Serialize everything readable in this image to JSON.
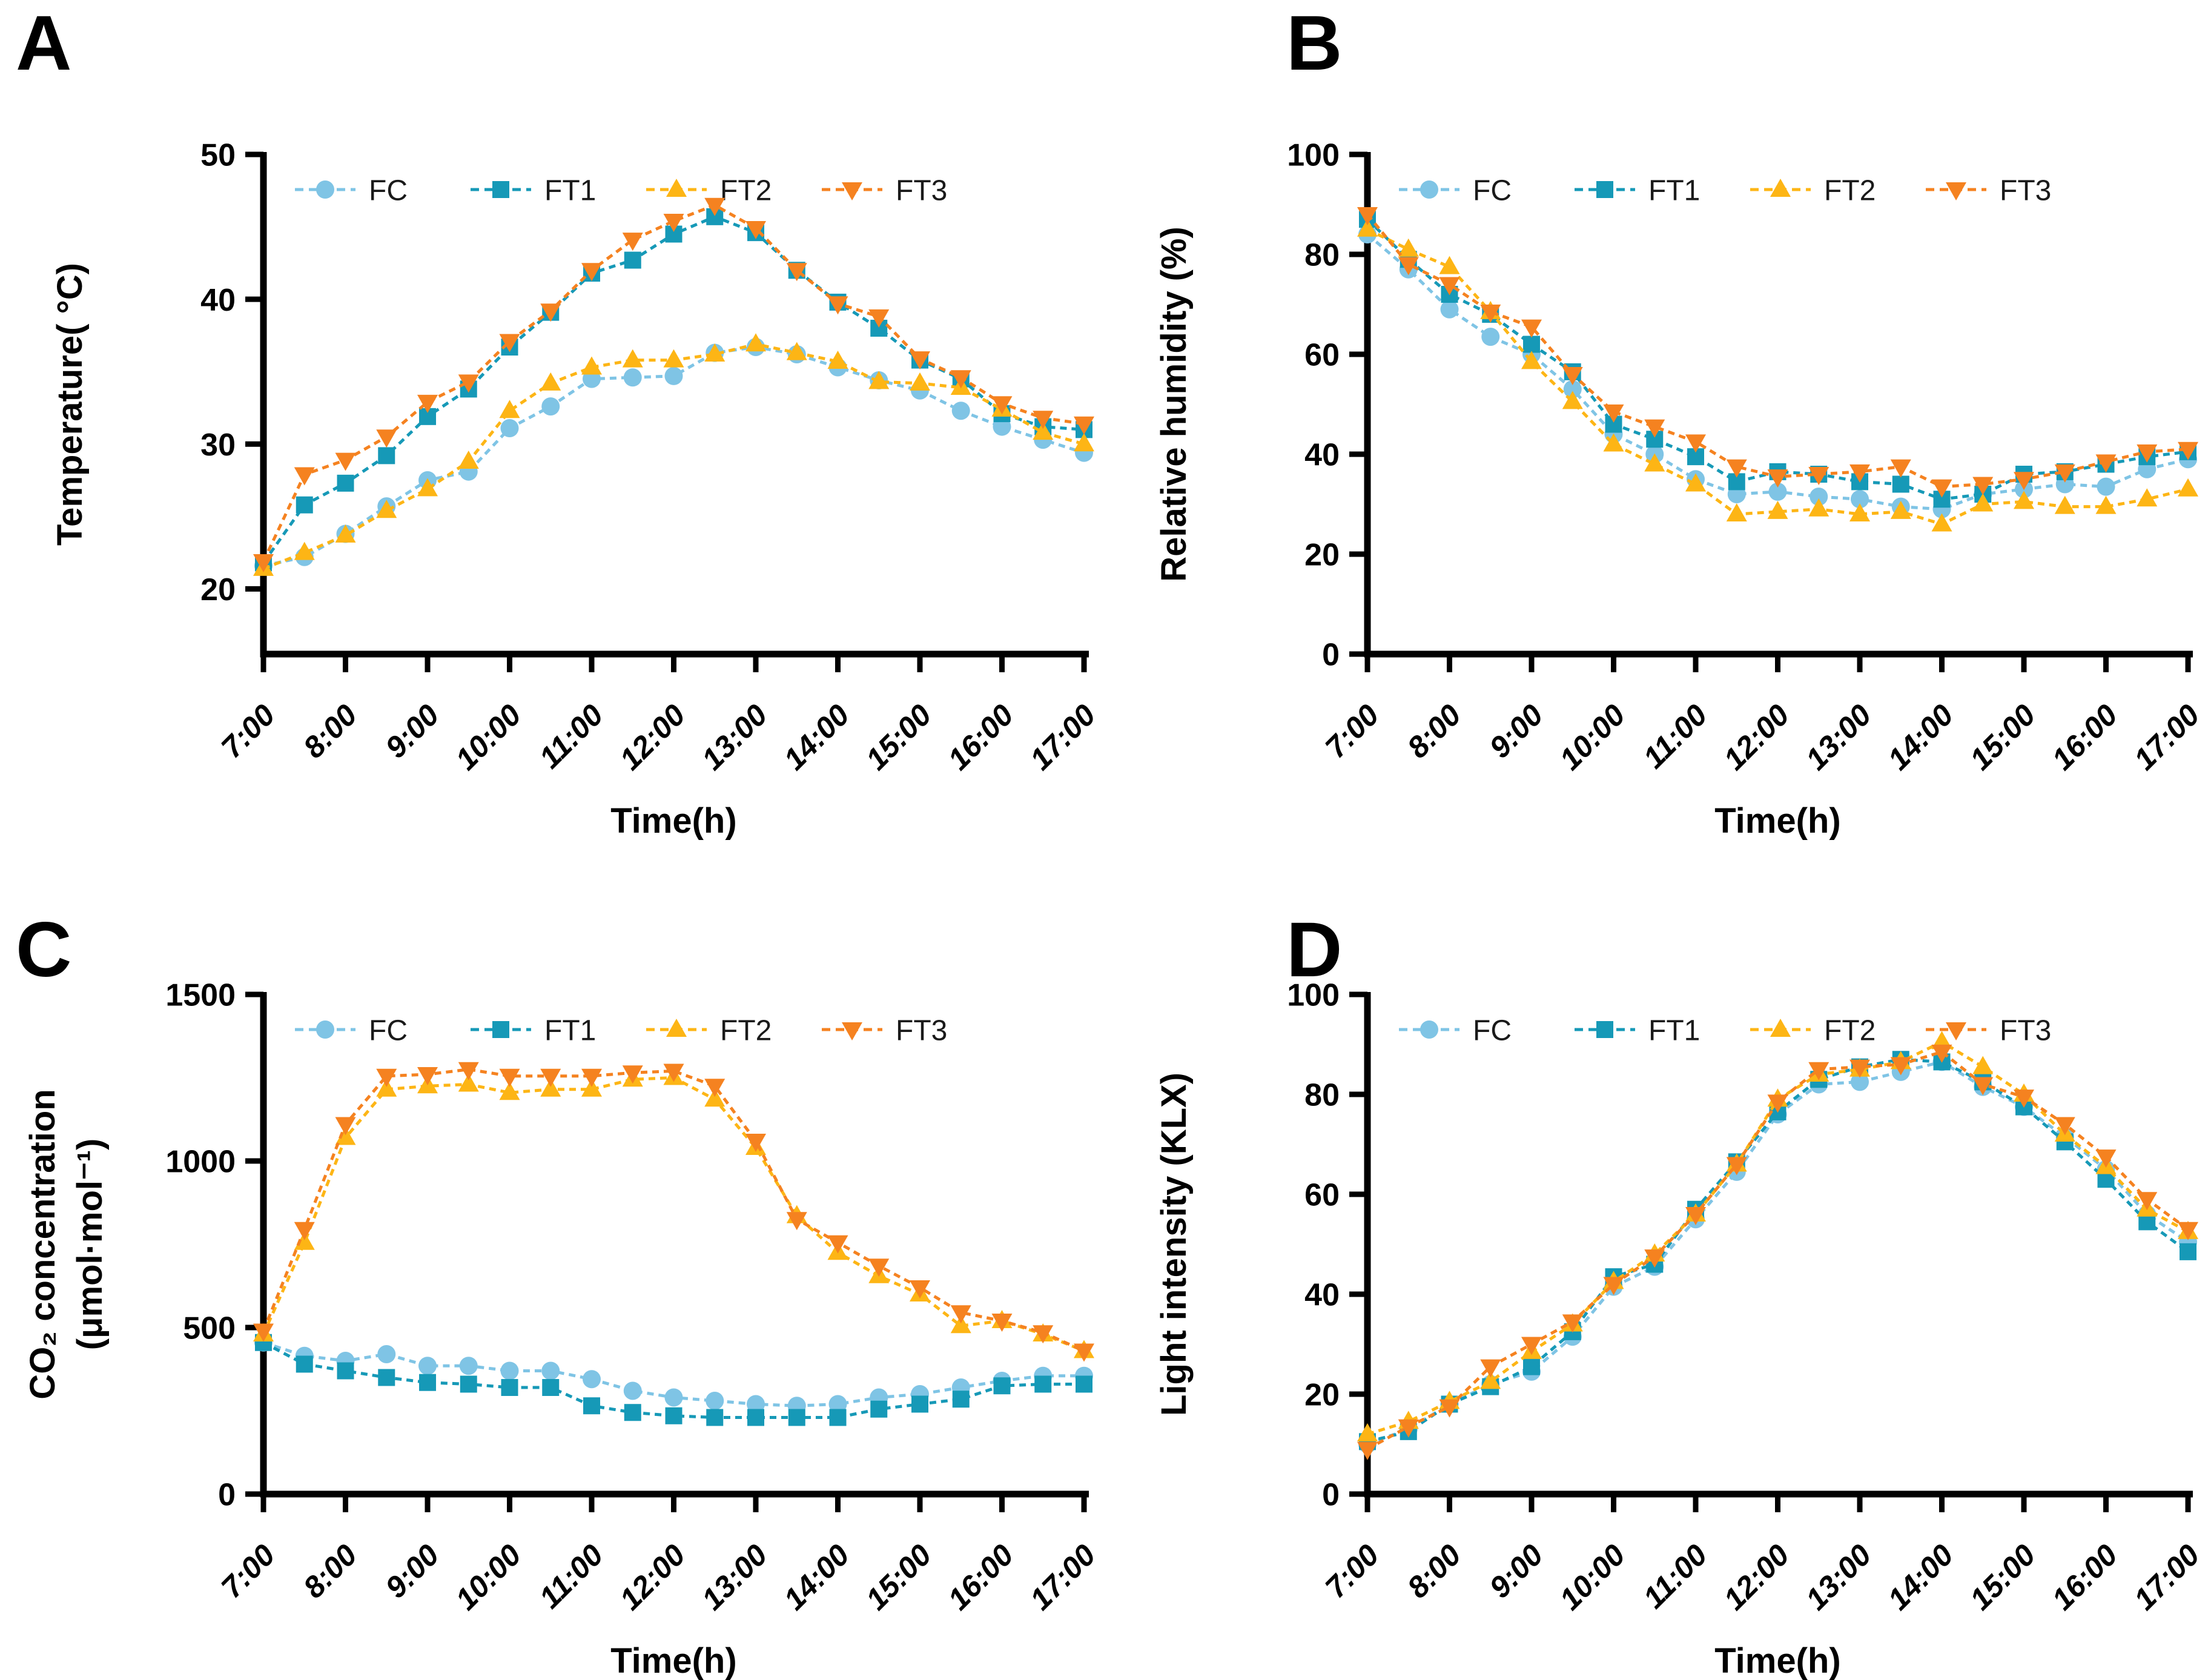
{
  "figure": {
    "background": "#ffffff",
    "x_axis_title": "Time(h)",
    "x_tick_labels": [
      "7:00",
      "8:00",
      "9:00",
      "10:00",
      "11:00",
      "12:00",
      "13:00",
      "14:00",
      "15:00",
      "16:00",
      "17:00"
    ],
    "x_points": [
      "7:00",
      "7:30",
      "8:00",
      "8:30",
      "9:00",
      "9:30",
      "10:00",
      "10:30",
      "11:00",
      "11:30",
      "12:00",
      "12:30",
      "13:00",
      "13:30",
      "14:00",
      "14:30",
      "15:00",
      "15:30",
      "16:00",
      "16:30",
      "17:00"
    ],
    "legend_labels": [
      "FC",
      "FT1",
      "FT2",
      "FT3"
    ],
    "colors": {
      "FC": "#7fc4e5",
      "FT1": "#1699b7",
      "FT2": "#fdb515",
      "FT3": "#f58220"
    },
    "axis_color": "#000000",
    "text_color": "#000000"
  },
  "chart_data": [
    {
      "panel": "A",
      "type": "line",
      "ylabel_lines": [
        "Temperature( °C)"
      ],
      "xlabel": "Time(h)",
      "ylim": [
        15.5,
        50
      ],
      "yticks": [
        20,
        30,
        40,
        50
      ],
      "legend_position": "top-left-inside",
      "grid": false,
      "x": [
        "7:00",
        "7:30",
        "8:00",
        "8:30",
        "9:00",
        "9:30",
        "10:00",
        "10:30",
        "11:00",
        "11:30",
        "12:00",
        "12:30",
        "13:00",
        "13:30",
        "14:00",
        "14:30",
        "15:00",
        "15:30",
        "16:00",
        "16:30",
        "17:00"
      ],
      "series": [
        {
          "name": "FC",
          "marker": "circle",
          "color": "#7fc4e5",
          "values": [
            21.6,
            22.2,
            23.8,
            25.7,
            27.5,
            28.1,
            31.1,
            32.6,
            34.5,
            34.6,
            34.7,
            36.3,
            36.7,
            36.2,
            35.3,
            34.4,
            33.7,
            32.3,
            31.2,
            30.3,
            29.4
          ]
        },
        {
          "name": "FT1",
          "marker": "square",
          "color": "#1699b7",
          "values": [
            21.8,
            25.8,
            27.3,
            29.2,
            31.9,
            33.8,
            36.7,
            39.1,
            41.8,
            42.7,
            44.5,
            45.7,
            44.6,
            42.0,
            39.8,
            38.0,
            35.8,
            34.5,
            32.1,
            31.2,
            31.0
          ]
        },
        {
          "name": "FT2",
          "marker": "triangle-up",
          "color": "#fdb515",
          "values": [
            21.4,
            22.5,
            23.7,
            25.4,
            26.9,
            28.8,
            32.3,
            34.2,
            35.3,
            35.8,
            35.8,
            36.2,
            36.9,
            36.3,
            35.7,
            34.3,
            34.2,
            33.9,
            32.4,
            30.8,
            30.0
          ]
        },
        {
          "name": "FT3",
          "marker": "triangle-down",
          "color": "#f58220",
          "values": [
            21.9,
            27.9,
            28.9,
            30.5,
            32.9,
            34.3,
            37.1,
            39.2,
            42.0,
            44.1,
            45.4,
            46.5,
            44.9,
            42.0,
            39.7,
            38.8,
            35.9,
            34.6,
            32.8,
            31.8,
            31.4
          ]
        }
      ]
    },
    {
      "panel": "B",
      "type": "line",
      "ylabel_lines": [
        "Relative humidity (%)"
      ],
      "xlabel": "Time(h)",
      "ylim": [
        0,
        100
      ],
      "yticks": [
        0,
        20,
        40,
        60,
        80,
        100
      ],
      "legend_position": "top-left-inside",
      "grid": false,
      "x": [
        "7:00",
        "7:30",
        "8:00",
        "8:30",
        "9:00",
        "9:30",
        "10:00",
        "10:30",
        "11:00",
        "11:30",
        "12:00",
        "12:30",
        "13:00",
        "13:30",
        "14:00",
        "14:30",
        "15:00",
        "15:30",
        "16:00",
        "16:30",
        "17:00"
      ],
      "series": [
        {
          "name": "FC",
          "marker": "circle",
          "color": "#7fc4e5",
          "values": [
            84,
            77,
            69,
            63.5,
            60,
            53,
            44,
            40,
            35,
            32,
            32.5,
            31.5,
            31,
            29.5,
            29,
            32,
            33,
            34,
            33.5,
            37,
            39
          ]
        },
        {
          "name": "FT1",
          "marker": "square",
          "color": "#1699b7",
          "values": [
            87,
            79,
            72,
            68,
            62,
            56.5,
            46,
            43,
            39.5,
            34.5,
            36.5,
            36,
            34.5,
            34,
            31,
            32,
            36,
            36.5,
            38,
            39.5,
            40.5
          ]
        },
        {
          "name": "FT2",
          "marker": "triangle-up",
          "color": "#fdb515",
          "values": [
            85,
            81,
            77.5,
            68.5,
            58.5,
            50.5,
            42,
            38,
            34,
            28,
            28.5,
            29,
            28,
            28.5,
            26,
            30,
            30.5,
            29.5,
            29.5,
            31,
            33
          ]
        },
        {
          "name": "FT3",
          "marker": "triangle-down",
          "color": "#f58220",
          "values": [
            88,
            78,
            74,
            68.5,
            65.5,
            56,
            48.5,
            45.5,
            42.5,
            37.5,
            35.5,
            36,
            36.5,
            37.5,
            33.5,
            34,
            35,
            36.5,
            38.5,
            40.5,
            41
          ]
        }
      ]
    },
    {
      "panel": "C",
      "type": "line",
      "ylabel_lines": [
        "CO₂ concentration",
        "(μmol·mol⁻¹)"
      ],
      "xlabel": "Time(h)",
      "ylim": [
        0,
        1500
      ],
      "yticks": [
        0,
        500,
        1000,
        1500
      ],
      "legend_position": "top-left-inside",
      "grid": false,
      "x": [
        "7:00",
        "7:30",
        "8:00",
        "8:30",
        "9:00",
        "9:30",
        "10:00",
        "10:30",
        "11:00",
        "11:30",
        "12:00",
        "12:30",
        "13:00",
        "13:30",
        "14:00",
        "14:30",
        "15:00",
        "15:30",
        "16:00",
        "16:30",
        "17:00"
      ],
      "series": [
        {
          "name": "FC",
          "marker": "circle",
          "color": "#7fc4e5",
          "values": [
            455,
            415,
            400,
            420,
            385,
            385,
            370,
            370,
            345,
            310,
            290,
            280,
            270,
            265,
            270,
            290,
            300,
            320,
            340,
            355,
            355
          ]
        },
        {
          "name": "FT1",
          "marker": "square",
          "color": "#1699b7",
          "values": [
            455,
            390,
            370,
            350,
            335,
            330,
            320,
            320,
            265,
            245,
            235,
            230,
            230,
            230,
            230,
            255,
            270,
            285,
            325,
            330,
            330
          ]
        },
        {
          "name": "FT2",
          "marker": "triangle-up",
          "color": "#fdb515",
          "values": [
            480,
            755,
            1070,
            1215,
            1225,
            1230,
            1205,
            1215,
            1215,
            1245,
            1250,
            1185,
            1040,
            835,
            725,
            655,
            600,
            505,
            520,
            480,
            430
          ]
        },
        {
          "name": "FT3",
          "marker": "triangle-down",
          "color": "#f58220",
          "values": [
            490,
            795,
            1110,
            1255,
            1260,
            1275,
            1255,
            1255,
            1255,
            1265,
            1270,
            1225,
            1060,
            825,
            755,
            685,
            620,
            545,
            520,
            485,
            430
          ]
        }
      ]
    },
    {
      "panel": "D",
      "type": "line",
      "ylabel_lines": [
        "Light intensity (KLX)"
      ],
      "xlabel": "Time(h)",
      "ylim": [
        0,
        100
      ],
      "yticks": [
        0,
        20,
        40,
        60,
        80,
        100
      ],
      "legend_position": "top-left-inside",
      "grid": false,
      "x": [
        "7:00",
        "7:30",
        "8:00",
        "8:30",
        "9:00",
        "9:30",
        "10:00",
        "10:30",
        "11:00",
        "11:30",
        "12:00",
        "12:30",
        "13:00",
        "13:30",
        "14:00",
        "14:30",
        "15:00",
        "15:30",
        "16:00",
        "16:30",
        "17:00"
      ],
      "series": [
        {
          "name": "FC",
          "marker": "circle",
          "color": "#7fc4e5",
          "values": [
            10,
            13,
            18,
            22,
            24.5,
            31.5,
            41.5,
            45.5,
            55,
            64.5,
            76,
            82,
            82.5,
            84.5,
            86.5,
            81.5,
            77.5,
            71.5,
            65,
            56,
            50.5
          ]
        },
        {
          "name": "FT1",
          "marker": "square",
          "color": "#1699b7",
          "values": [
            10.5,
            12.5,
            18,
            21.5,
            25.5,
            32.5,
            43.5,
            46,
            57,
            66.5,
            76.5,
            83,
            85.5,
            87,
            86.5,
            82.5,
            77.5,
            70.5,
            63,
            54.5,
            48.5
          ]
        },
        {
          "name": "FT2",
          "marker": "triangle-up",
          "color": "#fdb515",
          "values": [
            12,
            14.5,
            18.5,
            22.5,
            28.5,
            34,
            42.5,
            48,
            56,
            66,
            79,
            84,
            85,
            86.5,
            90.5,
            85.5,
            80,
            72,
            65.5,
            57,
            52.5
          ]
        },
        {
          "name": "FT3",
          "marker": "triangle-down",
          "color": "#f58220",
          "values": [
            9,
            13.5,
            17.5,
            25.5,
            30,
            34.5,
            42,
            47.5,
            56,
            66,
            78.5,
            85,
            85.5,
            86,
            88.5,
            82,
            79.5,
            74,
            67.5,
            59,
            53
          ]
        }
      ]
    }
  ]
}
